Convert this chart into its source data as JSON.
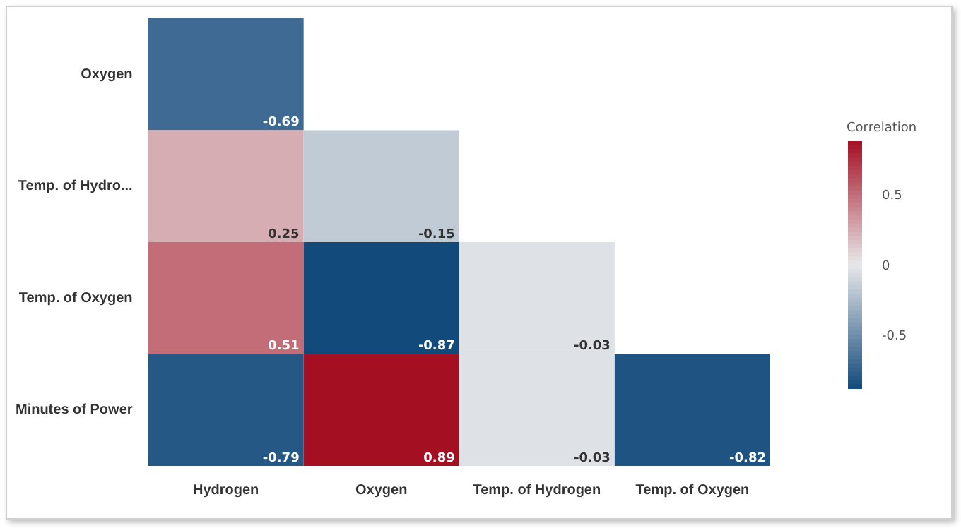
{
  "chart_data": {
    "type": "heatmap",
    "clabel": "Correlation",
    "categories": [
      "Hydrogen",
      "Oxygen",
      "Temp. of Hydrogen",
      "Temp. of Oxygen"
    ],
    "y_categories": [
      "Oxygen",
      "Temp. of Hydro...",
      "Temp. of Oxygen",
      "Minutes of Power"
    ],
    "cells": [
      [
        -0.69,
        null,
        null,
        null
      ],
      [
        0.25,
        -0.15,
        null,
        null
      ],
      [
        0.51,
        -0.87,
        -0.03,
        null
      ],
      [
        -0.79,
        0.89,
        -0.03,
        -0.82
      ]
    ],
    "clim": [
      -0.87,
      0.89
    ],
    "cticks": [
      0.5,
      0,
      -0.5
    ],
    "data_labels": true
  }
}
